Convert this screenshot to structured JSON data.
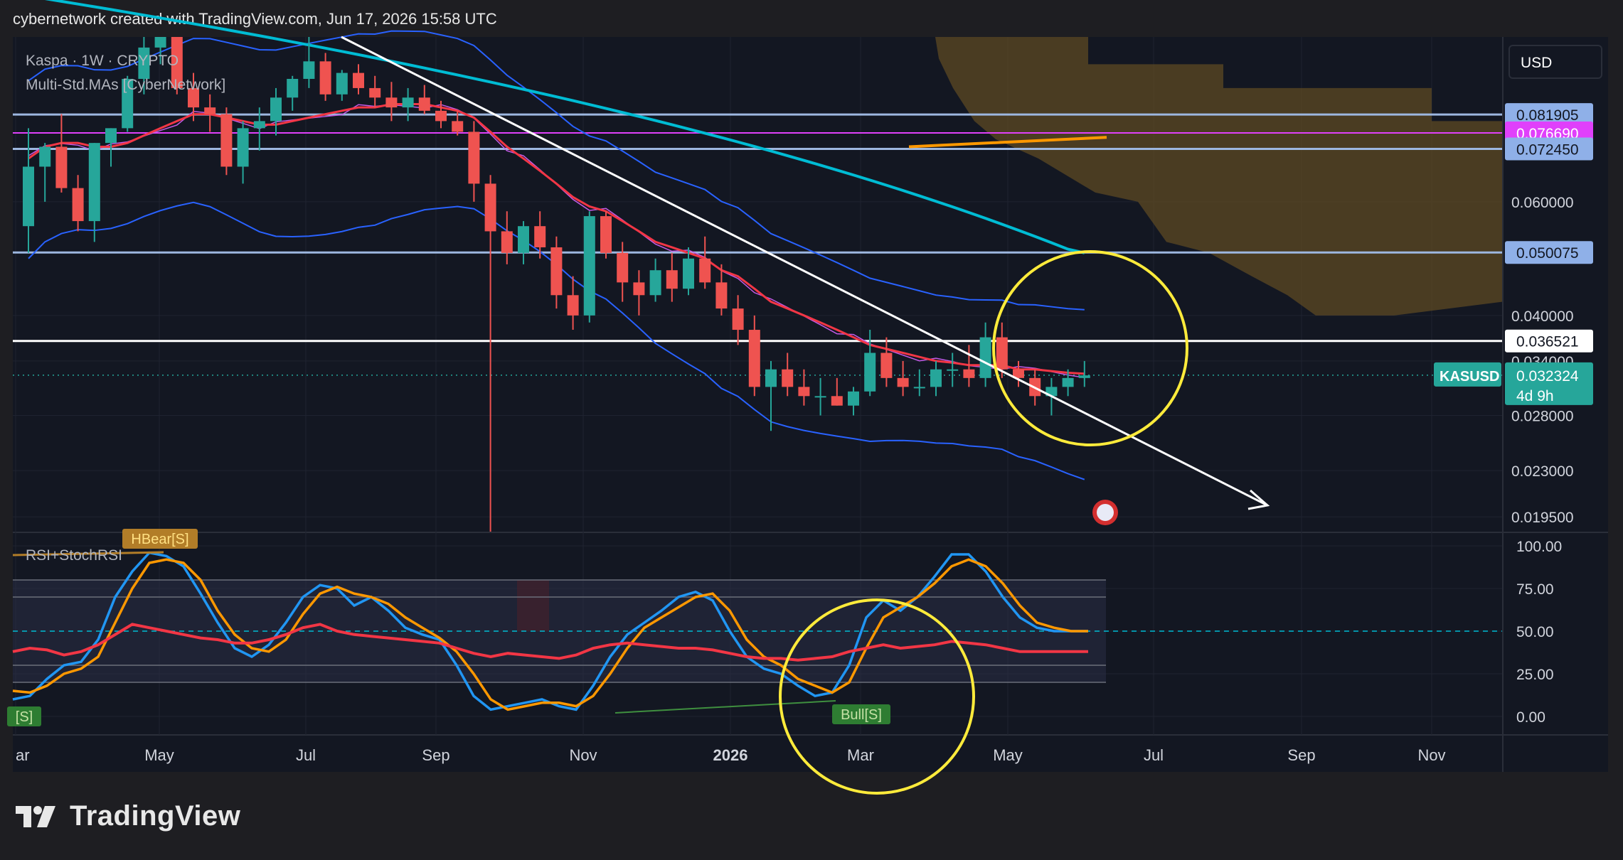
{
  "header": {
    "attribution": "cybernetwork created with TradingView.com, Jun 17, 2026 15:58 UTC"
  },
  "footer": {
    "brand": "TradingView"
  },
  "colors": {
    "bg": "#131722",
    "frame": "#1e1e22",
    "up": "#26a69a",
    "down": "#ef5350",
    "ma_red": "#f23645",
    "ma_teal": "#00bcd4",
    "band_blue": "#2962ff",
    "level": "#9db7e0",
    "magenta": "#e040fb",
    "yellow": "#ffeb3b",
    "cloud": "#5d4a23",
    "orange": "#ff9800",
    "rsi_blue": "#2196f3"
  },
  "chart_data": [
    {
      "type": "candlestick",
      "symbol_info": "Kaspa · 1W · CRYPTO",
      "indicator": "Multi-Std.MAs [CyberNetwork]",
      "currency": "USD",
      "ticker": "KASUSD",
      "last_price": "0.032324",
      "countdown": "4d 9h",
      "scale": "log",
      "ylim": [
        0.0185,
        0.108
      ],
      "y_ticks": [
        "0.060000",
        "0.040000",
        "0.034000",
        "0.028000",
        "0.023000",
        "0.019500"
      ],
      "price_levels": [
        {
          "value": "0.081905",
          "style": "level"
        },
        {
          "value": "0.076690",
          "style": "magenta"
        },
        {
          "value": "0.072450",
          "style": "level"
        },
        {
          "value": "0.050075",
          "style": "level"
        },
        {
          "value": "0.036521",
          "style": "white"
        }
      ],
      "x_ticks": [
        "Mar",
        "May",
        "Jul",
        "Sep",
        "Nov",
        "2026",
        "Mar",
        "May",
        "Jul",
        "Sep",
        "Nov"
      ],
      "candles": [
        [
          0.055,
          0.078,
          0.05,
          0.068
        ],
        [
          0.068,
          0.074,
          0.06,
          0.073
        ],
        [
          0.073,
          0.082,
          0.062,
          0.063
        ],
        [
          0.063,
          0.066,
          0.054,
          0.056
        ],
        [
          0.056,
          0.074,
          0.052,
          0.074
        ],
        [
          0.074,
          0.078,
          0.068,
          0.078
        ],
        [
          0.078,
          0.094,
          0.077,
          0.093
        ],
        [
          0.093,
          0.11,
          0.088,
          0.104
        ],
        [
          0.104,
          0.112,
          0.098,
          0.108
        ],
        [
          0.108,
          0.114,
          0.088,
          0.09
        ],
        [
          0.09,
          0.095,
          0.08,
          0.084
        ],
        [
          0.084,
          0.088,
          0.077,
          0.082
        ],
        [
          0.082,
          0.084,
          0.066,
          0.068
        ],
        [
          0.068,
          0.08,
          0.064,
          0.078
        ],
        [
          0.078,
          0.084,
          0.072,
          0.08
        ],
        [
          0.08,
          0.09,
          0.076,
          0.087
        ],
        [
          0.087,
          0.094,
          0.083,
          0.093
        ],
        [
          0.093,
          0.108,
          0.09,
          0.099
        ],
        [
          0.099,
          0.102,
          0.086,
          0.088
        ],
        [
          0.088,
          0.096,
          0.086,
          0.095
        ],
        [
          0.095,
          0.098,
          0.088,
          0.09
        ],
        [
          0.09,
          0.094,
          0.084,
          0.087
        ],
        [
          0.087,
          0.092,
          0.08,
          0.084
        ],
        [
          0.084,
          0.09,
          0.08,
          0.087
        ],
        [
          0.087,
          0.091,
          0.082,
          0.083
        ],
        [
          0.083,
          0.086,
          0.078,
          0.08
        ],
        [
          0.08,
          0.083,
          0.076,
          0.077
        ],
        [
          0.077,
          0.08,
          0.06,
          0.064
        ],
        [
          0.064,
          0.066,
          0.0185,
          0.054
        ],
        [
          0.054,
          0.058,
          0.048,
          0.05
        ],
        [
          0.05,
          0.056,
          0.048,
          0.055
        ],
        [
          0.055,
          0.058,
          0.049,
          0.051
        ],
        [
          0.051,
          0.053,
          0.041,
          0.043
        ],
        [
          0.043,
          0.046,
          0.038,
          0.04
        ],
        [
          0.04,
          0.058,
          0.039,
          0.057
        ],
        [
          0.057,
          0.058,
          0.049,
          0.05
        ],
        [
          0.05,
          0.052,
          0.042,
          0.045
        ],
        [
          0.045,
          0.047,
          0.04,
          0.043
        ],
        [
          0.043,
          0.049,
          0.042,
          0.047
        ],
        [
          0.047,
          0.05,
          0.042,
          0.044
        ],
        [
          0.044,
          0.051,
          0.043,
          0.049
        ],
        [
          0.049,
          0.053,
          0.044,
          0.045
        ],
        [
          0.045,
          0.048,
          0.04,
          0.041
        ],
        [
          0.041,
          0.043,
          0.036,
          0.038
        ],
        [
          0.038,
          0.04,
          0.03,
          0.031
        ],
        [
          0.031,
          0.034,
          0.0265,
          0.033
        ],
        [
          0.033,
          0.035,
          0.03,
          0.031
        ],
        [
          0.031,
          0.033,
          0.029,
          0.03
        ],
        [
          0.03,
          0.032,
          0.028,
          0.03
        ],
        [
          0.03,
          0.032,
          0.029,
          0.029
        ],
        [
          0.029,
          0.031,
          0.028,
          0.0305
        ],
        [
          0.0305,
          0.038,
          0.03,
          0.035
        ],
        [
          0.035,
          0.037,
          0.031,
          0.032
        ],
        [
          0.032,
          0.034,
          0.03,
          0.031
        ],
        [
          0.031,
          0.033,
          0.03,
          0.031
        ],
        [
          0.031,
          0.034,
          0.03,
          0.033
        ],
        [
          0.033,
          0.035,
          0.031,
          0.033
        ],
        [
          0.033,
          0.036,
          0.031,
          0.032
        ],
        [
          0.032,
          0.039,
          0.031,
          0.037
        ],
        [
          0.037,
          0.039,
          0.032,
          0.033
        ],
        [
          0.033,
          0.034,
          0.031,
          0.032
        ],
        [
          0.032,
          0.033,
          0.029,
          0.03
        ],
        [
          0.03,
          0.032,
          0.028,
          0.031
        ],
        [
          0.031,
          0.033,
          0.03,
          0.032
        ],
        [
          0.032,
          0.034,
          0.031,
          0.0323
        ]
      ],
      "ma_red": [
        0.07,
        0.073,
        0.074,
        0.074,
        0.073,
        0.073,
        0.074,
        0.076,
        0.078,
        0.08,
        0.082,
        0.082,
        0.081,
        0.08,
        0.079,
        0.079,
        0.08,
        0.081,
        0.082,
        0.083,
        0.084,
        0.084,
        0.085,
        0.085,
        0.085,
        0.084,
        0.083,
        0.081,
        0.077,
        0.073,
        0.07,
        0.067,
        0.064,
        0.061,
        0.059,
        0.058,
        0.056,
        0.054,
        0.052,
        0.051,
        0.05,
        0.049,
        0.047,
        0.046,
        0.044,
        0.042,
        0.041,
        0.04,
        0.039,
        0.038,
        0.037,
        0.036,
        0.0355,
        0.035,
        0.0345,
        0.034,
        0.0338,
        0.0335,
        0.0335,
        0.0335,
        0.033,
        0.033,
        0.0328,
        0.0326,
        0.0325
      ]
    },
    {
      "type": "line",
      "indicator": "RSI+StochRSI",
      "ylim": [
        0,
        100
      ],
      "y_ticks": [
        "100.00",
        "75.00",
        "50.00",
        "25.00",
        "0.00"
      ],
      "annotations": [
        "HBear[S]",
        "Bull[S]",
        "Bull[S]"
      ],
      "series": [
        {
          "name": "",
          "color": "#2196f3",
          "values": [
            10,
            12,
            22,
            30,
            32,
            45,
            70,
            85,
            96,
            94,
            88,
            72,
            55,
            40,
            35,
            42,
            55,
            70,
            77,
            75,
            65,
            70,
            62,
            52,
            48,
            45,
            30,
            12,
            4,
            6,
            8,
            10,
            6,
            4,
            18,
            35,
            48,
            55,
            62,
            70,
            73,
            68,
            50,
            35,
            28,
            25,
            18,
            12,
            14,
            30,
            58,
            68,
            62,
            70,
            82,
            95,
            95,
            85,
            70,
            58,
            52,
            50,
            50,
            50
          ]
        },
        {
          "name": "",
          "color": "#ff9800",
          "values": [
            15,
            14,
            18,
            25,
            28,
            35,
            55,
            75,
            90,
            92,
            90,
            80,
            62,
            48,
            40,
            38,
            45,
            60,
            72,
            76,
            72,
            70,
            66,
            58,
            52,
            46,
            38,
            25,
            10,
            4,
            6,
            8,
            8,
            6,
            12,
            25,
            40,
            52,
            58,
            64,
            70,
            72,
            62,
            45,
            35,
            30,
            22,
            18,
            14,
            20,
            40,
            58,
            64,
            70,
            78,
            88,
            92,
            88,
            78,
            65,
            55,
            52,
            50,
            50
          ]
        },
        {
          "name": "",
          "color": "#f23645",
          "values": [
            38,
            40,
            39,
            36,
            38,
            42,
            48,
            54,
            52,
            50,
            48,
            46,
            45,
            43,
            43,
            45,
            48,
            52,
            54,
            50,
            48,
            47,
            46,
            45,
            44,
            43,
            40,
            37,
            35,
            37,
            36,
            35,
            34,
            36,
            40,
            42,
            43,
            42,
            41,
            40,
            40,
            39,
            37,
            35,
            34,
            34,
            33,
            34,
            35,
            38,
            40,
            42,
            40,
            41,
            42,
            44,
            43,
            42,
            40,
            38,
            38,
            38,
            38,
            38
          ]
        }
      ]
    }
  ]
}
